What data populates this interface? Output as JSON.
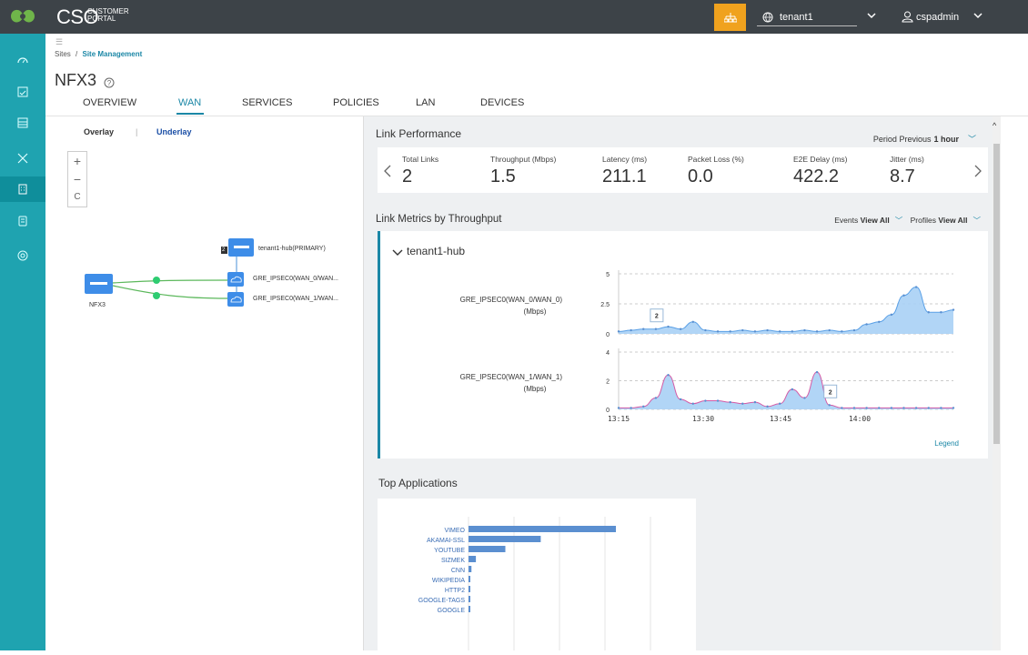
{
  "brand": {
    "name": "CSO",
    "sub1": "CUSTOMER",
    "sub2": "PORTAL"
  },
  "header": {
    "tenant": "tenant1",
    "user": "cspadmin",
    "accent": "#f0a21e",
    "bar": "#3d4348"
  },
  "nav": {
    "color": "#1fa3b0"
  },
  "breadcrumb": {
    "root": "Sites",
    "sep": "/",
    "current": "Site Management"
  },
  "page": {
    "title": "NFX3"
  },
  "tabs": [
    {
      "label": "OVERVIEW"
    },
    {
      "label": "WAN"
    },
    {
      "label": "SERVICES"
    },
    {
      "label": "POLICIES"
    },
    {
      "label": "LAN"
    },
    {
      "label": "DEVICES"
    }
  ],
  "topology": {
    "toggle_overlay": "Overlay",
    "toggle_sep": "|",
    "toggle_underlay": "Underlay",
    "zoom_in": "+",
    "zoom_out": "−",
    "reset": "C",
    "hub_badge": "2",
    "hub_label": "tenant1-hub(PRIMARY)",
    "link1": "GRE_IPSEC0(WAN_0/WAN...",
    "link2": "GRE_IPSEC0(WAN_1/WAN...",
    "device": "NFX3"
  },
  "link_performance": {
    "title": "Link Performance",
    "period_label": "Period Previous",
    "period_value": "1 hour",
    "metrics": [
      {
        "label": "Total Links",
        "value": "2"
      },
      {
        "label": "Throughput (Mbps)",
        "value": "1.5"
      },
      {
        "label": "Latency (ms)",
        "value": "211.1"
      },
      {
        "label": "Packet Loss (%)",
        "value": "0.0"
      },
      {
        "label": "E2E Delay (ms)",
        "value": "422.2"
      },
      {
        "label": "Jitter (ms)",
        "value": "8.7"
      }
    ]
  },
  "link_metrics": {
    "title": "Link Metrics by Throughput",
    "events_label": "Events",
    "events_value": "View All",
    "profiles_label": "Profiles",
    "profiles_value": "View All",
    "hub": "tenant1-hub",
    "legend": "Legend",
    "ticks": [
      "13:15",
      "13:30",
      "13:45",
      "14:00"
    ]
  },
  "chart_data": [
    {
      "type": "area",
      "ylabel": "GRE_IPSEC0(WAN_0/WAN_0) (Mbps)",
      "ylim": [
        0,
        5
      ],
      "yticks": [
        0,
        2.5,
        5
      ],
      "x": [
        "13:15",
        "13:17",
        "13:19",
        "13:21",
        "13:23",
        "13:25",
        "13:27",
        "13:29",
        "13:31",
        "13:33",
        "13:35",
        "13:37",
        "13:39",
        "13:41",
        "13:43",
        "13:45",
        "13:47",
        "13:49",
        "13:51",
        "13:53",
        "13:55",
        "13:57",
        "13:59",
        "14:01",
        "14:03",
        "14:05",
        "14:07",
        "14:09"
      ],
      "values": [
        0.2,
        0.3,
        0.4,
        0.4,
        0.6,
        0.4,
        1.0,
        0.3,
        0.2,
        0.2,
        0.3,
        0.2,
        0.3,
        0.2,
        0.2,
        0.3,
        0.2,
        0.3,
        0.2,
        0.3,
        0.8,
        1.0,
        1.6,
        3.2,
        3.9,
        1.8,
        1.8,
        2.0
      ],
      "annotation": "2"
    },
    {
      "type": "area",
      "ylabel": "GRE_IPSEC0(WAN_1/WAN_1) (Mbps)",
      "ylim": [
        0,
        4
      ],
      "yticks": [
        0,
        2,
        4
      ],
      "x": [
        "13:15",
        "13:17",
        "13:19",
        "13:21",
        "13:23",
        "13:25",
        "13:27",
        "13:29",
        "13:31",
        "13:33",
        "13:35",
        "13:37",
        "13:39",
        "13:41",
        "13:43",
        "13:45",
        "13:47",
        "13:49",
        "13:51",
        "13:53",
        "13:55",
        "13:57",
        "13:59",
        "14:01",
        "14:03",
        "14:05",
        "14:07",
        "14:09"
      ],
      "values": [
        0.1,
        0.1,
        0.2,
        0.8,
        2.4,
        0.7,
        0.4,
        0.6,
        0.6,
        0.5,
        0.4,
        0.5,
        0.2,
        0.4,
        1.4,
        0.8,
        2.6,
        0.3,
        0.1,
        0.1,
        0.1,
        0.1,
        0.1,
        0.1,
        0.1,
        0.1,
        0.1,
        0.1
      ],
      "annotation": "2"
    },
    {
      "type": "bar",
      "title": "Top Applications",
      "categories": [
        "VIMEO",
        "AKAMAI-SSL",
        "YOUTUBE",
        "SIZMEK",
        "CNN",
        "WIKIPEDIA",
        "HTTP2",
        "GOOGLE-TAGS",
        "GOOGLE"
      ],
      "values": [
        100,
        49,
        25,
        5,
        2,
        1,
        1,
        1,
        1
      ]
    }
  ]
}
